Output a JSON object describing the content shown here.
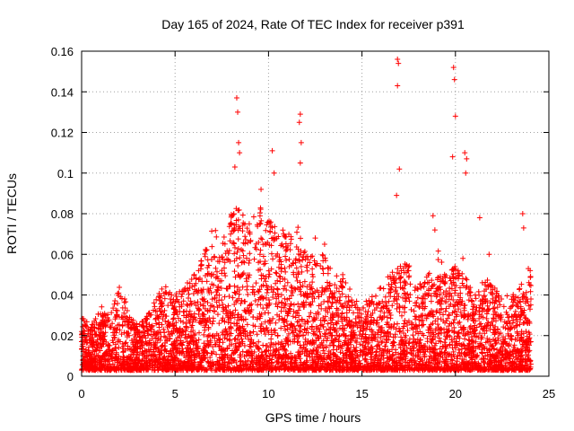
{
  "chart_data": {
    "type": "scatter",
    "title": "Day 165 of 2024, Rate Of TEC Index for receiver p391",
    "xlabel": "GPS time / hours",
    "ylabel": "ROTI / TECUs",
    "xlim": [
      0,
      25
    ],
    "ylim": [
      0,
      0.16
    ],
    "xticks": [
      0,
      5,
      10,
      15,
      20,
      25
    ],
    "xtick_labels": [
      "0",
      "5",
      "10",
      "15",
      "20",
      "25"
    ],
    "yticks": [
      0,
      0.02,
      0.04,
      0.06,
      0.08,
      0.1,
      0.12,
      0.14,
      0.16
    ],
    "ytick_labels": [
      "0",
      "0.02",
      "0.04",
      "0.06",
      "0.08",
      "0.1",
      "0.12",
      "0.14",
      "0.16"
    ],
    "grid": true,
    "marker": "+",
    "color": "#ff0000",
    "series": [
      {
        "name": "ROTI",
        "envelope": {
          "description": "upper bound of dense scatter by hour",
          "x": [
            0,
            0.5,
            1,
            1.5,
            2,
            2.5,
            3,
            3.5,
            4,
            4.5,
            5,
            5.5,
            6,
            6.5,
            7,
            7.5,
            8,
            8.5,
            9,
            9.5,
            10,
            10.5,
            11,
            11.5,
            12,
            12.5,
            13,
            13.5,
            14,
            14.5,
            15,
            15.5,
            16,
            16.5,
            17,
            17.5,
            18,
            18.5,
            19,
            19.5,
            20,
            20.5,
            21,
            21.5,
            22,
            22.5,
            23,
            23.5,
            24
          ],
          "y": [
            0.03,
            0.025,
            0.035,
            0.03,
            0.045,
            0.035,
            0.025,
            0.03,
            0.04,
            0.045,
            0.04,
            0.045,
            0.05,
            0.06,
            0.075,
            0.065,
            0.08,
            0.085,
            0.075,
            0.085,
            0.08,
            0.075,
            0.07,
            0.075,
            0.065,
            0.06,
            0.06,
            0.05,
            0.05,
            0.04,
            0.035,
            0.04,
            0.045,
            0.05,
            0.06,
            0.055,
            0.045,
            0.05,
            0.065,
            0.05,
            0.055,
            0.05,
            0.04,
            0.05,
            0.045,
            0.04,
            0.04,
            0.045,
            0.05
          ],
          "floor": 0.003
        },
        "outliers": {
          "x": [
            8.3,
            8.35,
            8.4,
            8.45,
            8.2,
            10.2,
            10.3,
            9.6,
            11.7,
            11.65,
            11.75,
            11.7,
            16.9,
            16.95,
            16.9,
            17.0,
            16.85,
            19.9,
            19.95,
            20.0,
            19.85,
            20.5,
            20.6,
            20.55,
            21.3,
            23.6,
            23.65,
            13.0,
            12.5,
            18.8,
            18.9,
            20.4,
            23.9,
            24.0,
            21.8
          ],
          "y": [
            0.137,
            0.13,
            0.115,
            0.11,
            0.103,
            0.111,
            0.1,
            0.092,
            0.129,
            0.125,
            0.115,
            0.105,
            0.156,
            0.154,
            0.143,
            0.102,
            0.089,
            0.152,
            0.146,
            0.128,
            0.108,
            0.11,
            0.107,
            0.1,
            0.078,
            0.08,
            0.073,
            0.065,
            0.068,
            0.079,
            0.072,
            0.058,
            0.053,
            0.052,
            0.06
          ]
        }
      }
    ]
  }
}
